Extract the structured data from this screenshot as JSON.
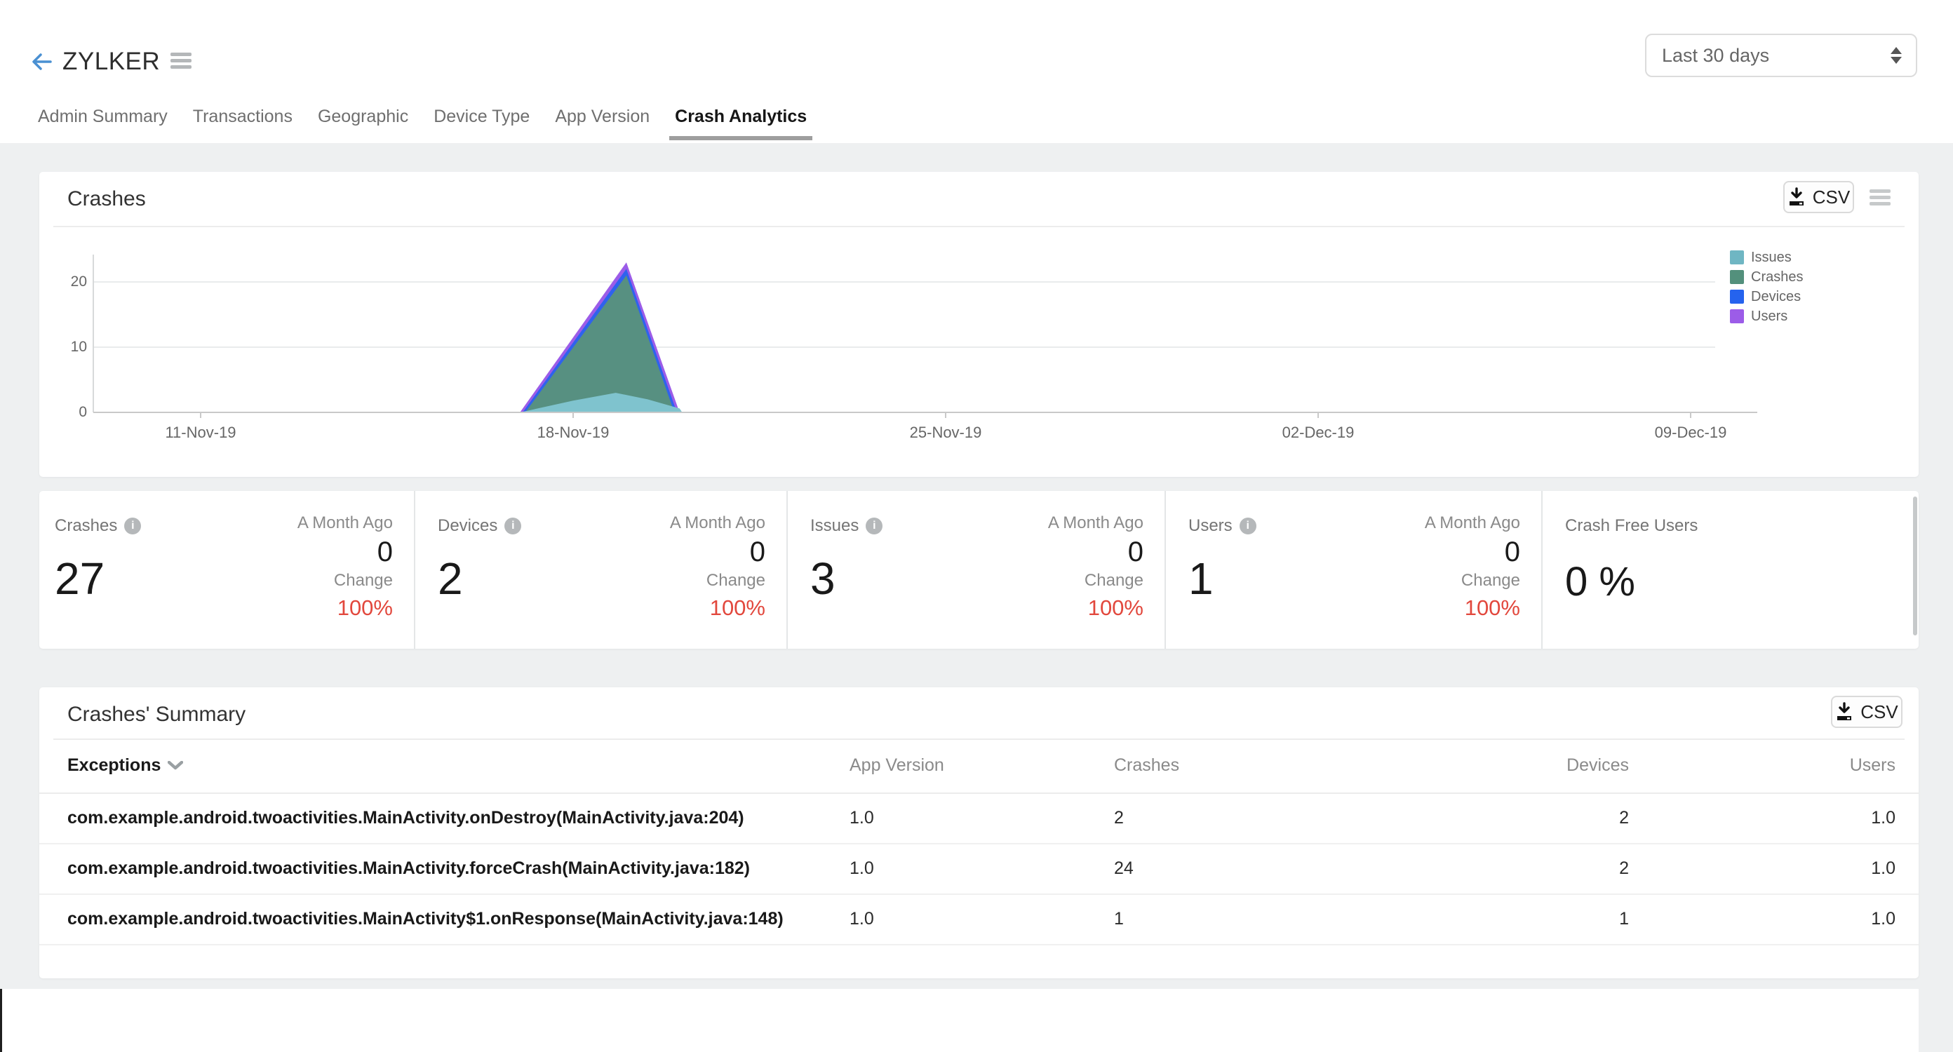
{
  "header": {
    "app_name": "ZYLKER",
    "date_range_selector": {
      "value": "Last 30 days"
    }
  },
  "tabs": [
    {
      "label": "Admin Summary",
      "active": false
    },
    {
      "label": "Transactions",
      "active": false
    },
    {
      "label": "Geographic",
      "active": false
    },
    {
      "label": "Device Type",
      "active": false
    },
    {
      "label": "App Version",
      "active": false
    },
    {
      "label": "Crash Analytics",
      "active": true
    }
  ],
  "crashes_card": {
    "title": "Crashes",
    "csv_button": "CSV"
  },
  "chart_data": {
    "type": "area",
    "title": "Crashes",
    "x_unit": "days since 11-Nov-19",
    "x_ticks": [
      {
        "day": 0,
        "label": "11-Nov-19"
      },
      {
        "day": 7,
        "label": "18-Nov-19"
      },
      {
        "day": 14,
        "label": "25-Nov-19"
      },
      {
        "day": 21,
        "label": "02-Dec-19"
      },
      {
        "day": 28,
        "label": "09-Dec-19"
      }
    ],
    "y_ticks": [
      0,
      10,
      20
    ],
    "ylim": [
      0,
      24
    ],
    "grid": "horizontal",
    "legend_position": "right",
    "legend": [
      {
        "label": "Issues",
        "color": "#6fb6c3"
      },
      {
        "label": "Crashes",
        "color": "#53907c"
      },
      {
        "label": "Devices",
        "color": "#2563ee"
      },
      {
        "label": "Users",
        "color": "#9c5ce8"
      }
    ],
    "series": [
      {
        "name": "Users",
        "color": "#9c5ce8",
        "points": [
          [
            6,
            0
          ],
          [
            8,
            23
          ],
          [
            9,
            0
          ]
        ]
      },
      {
        "name": "Devices",
        "color": "#2f62ee",
        "points": [
          [
            6.05,
            0
          ],
          [
            8,
            22
          ],
          [
            8.95,
            0
          ]
        ]
      },
      {
        "name": "Crashes",
        "color": "#579081",
        "points": [
          [
            6.1,
            0
          ],
          [
            8,
            21
          ],
          [
            8.9,
            0
          ]
        ]
      },
      {
        "name": "Issues",
        "color": "#7fc3ce",
        "points": [
          [
            6,
            0
          ],
          [
            7,
            1.8
          ],
          [
            7.8,
            3
          ],
          [
            8.4,
            2
          ],
          [
            9,
            0.6
          ],
          [
            9.05,
            0
          ]
        ]
      }
    ],
    "note": "all other days in range are zero"
  },
  "stats": [
    {
      "label": "Crashes",
      "value": "27",
      "month_ago_label": "A Month Ago",
      "month_ago_value": "0",
      "change_label": "Change",
      "change_value": "100%"
    },
    {
      "label": "Devices",
      "value": "2",
      "month_ago_label": "A Month Ago",
      "month_ago_value": "0",
      "change_label": "Change",
      "change_value": "100%"
    },
    {
      "label": "Issues",
      "value": "3",
      "month_ago_label": "A Month Ago",
      "month_ago_value": "0",
      "change_label": "Change",
      "change_value": "100%"
    },
    {
      "label": "Users",
      "value": "1",
      "month_ago_label": "A Month Ago",
      "month_ago_value": "0",
      "change_label": "Change",
      "change_value": "100%"
    },
    {
      "label": "Crash Free Users",
      "value": "0 %"
    }
  ],
  "summary_card": {
    "title": "Crashes' Summary",
    "csv_button": "CSV",
    "columns": [
      "Exceptions",
      "App Version",
      "Crashes",
      "Devices",
      "Users"
    ],
    "rows": [
      {
        "exception": "com.example.android.twoactivities.MainActivity.onDestroy(MainActivity.java:204)",
        "app_version": "1.0",
        "crashes": "2",
        "devices": "2",
        "users": "1.0"
      },
      {
        "exception": "com.example.android.twoactivities.MainActivity.forceCrash(MainActivity.java:182)",
        "app_version": "1.0",
        "crashes": "24",
        "devices": "2",
        "users": "1.0"
      },
      {
        "exception": "com.example.android.twoactivities.MainActivity$1.onResponse(MainActivity.java:148)",
        "app_version": "1.0",
        "crashes": "1",
        "devices": "1",
        "users": "1.0"
      }
    ]
  },
  "colors": {
    "change_negative": "#e2483d",
    "accent_blue": "#4a90d2",
    "content_background": "#eef0f1"
  }
}
